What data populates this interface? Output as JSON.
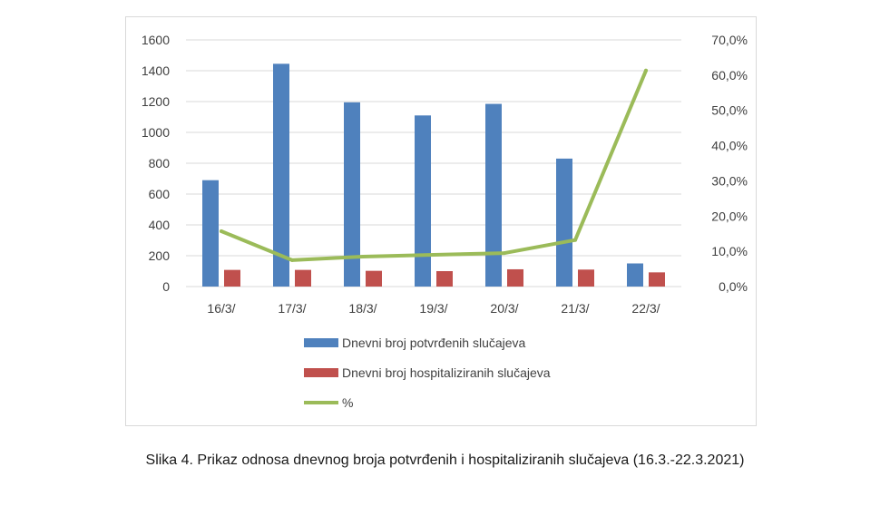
{
  "caption": "Slika 4. Prikaz odnosa dnevnog broja potvrđenih i hospitaliziranih slučajeva (16.3.-22.3.2021)",
  "chart_data": {
    "type": "bar",
    "categories": [
      "16/3/",
      "17/3/",
      "18/3/",
      "19/3/",
      "20/3/",
      "21/3/",
      "22/3/"
    ],
    "series": [
      {
        "name": "Dnevni broj potvrđenih slučajeva",
        "type": "bar",
        "axis": "left",
        "color": "#4f81bd",
        "values": [
          690,
          1445,
          1195,
          1110,
          1185,
          830,
          150
        ]
      },
      {
        "name": "Dnevni broj hospitaliziranih slučajeva",
        "type": "bar",
        "axis": "left",
        "color": "#c0504d",
        "values": [
          108,
          108,
          102,
          100,
          112,
          110,
          92
        ]
      },
      {
        "name": "%",
        "type": "line",
        "axis": "right",
        "color": "#9bbb59",
        "values": [
          15.7,
          7.5,
          8.5,
          9.0,
          9.5,
          13.2,
          61.3
        ]
      }
    ],
    "y_left": {
      "min": 0,
      "max": 1600,
      "ticks": [
        "0",
        "200",
        "400",
        "600",
        "800",
        "1000",
        "1200",
        "1400",
        "1600"
      ]
    },
    "y_right": {
      "min": 0,
      "max": 70,
      "ticks": [
        "0,0%",
        "10,0%",
        "20,0%",
        "30,0%",
        "40,0%",
        "50,0%",
        "60,0%",
        "70,0%"
      ]
    },
    "grid": true,
    "legend_position": "bottom"
  }
}
